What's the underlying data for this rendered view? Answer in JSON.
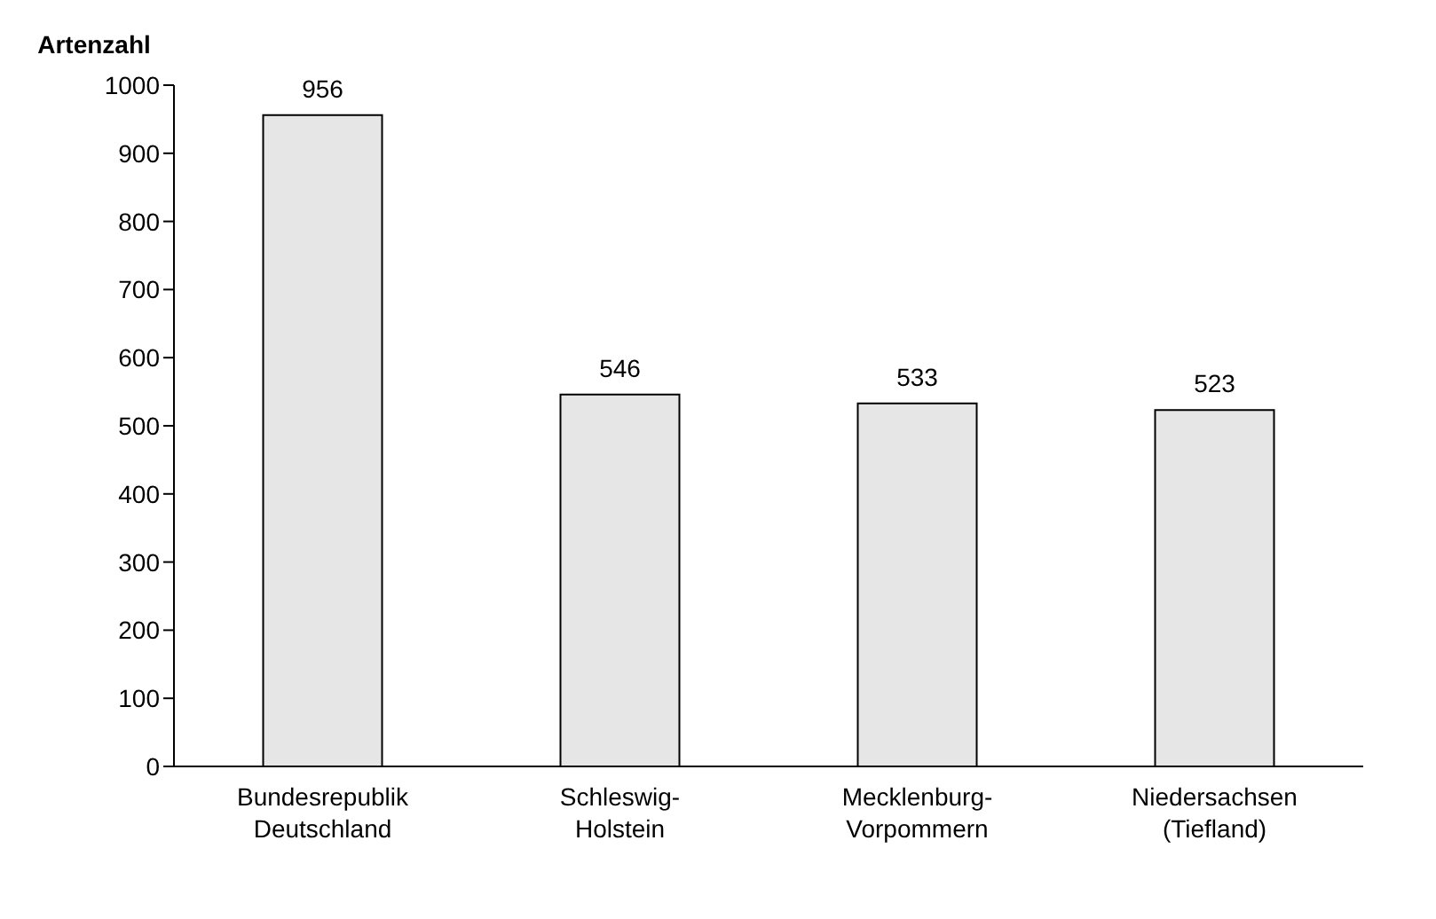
{
  "chart_data": {
    "type": "bar",
    "ylabel": "Artenzahl",
    "categories": [
      "Bundesrepublik\nDeutschland",
      "Schleswig-\nHolstein",
      "Mecklenburg-\nVorpommern",
      "Niedersachsen\n(Tiefland)"
    ],
    "values": [
      956,
      546,
      533,
      523
    ],
    "color": "#e6e6e6",
    "ylim": [
      0,
      1000
    ],
    "yticks": [
      0,
      100,
      200,
      300,
      400,
      500,
      600,
      700,
      800,
      900,
      1000
    ],
    "grid": false,
    "data_labels": true
  }
}
